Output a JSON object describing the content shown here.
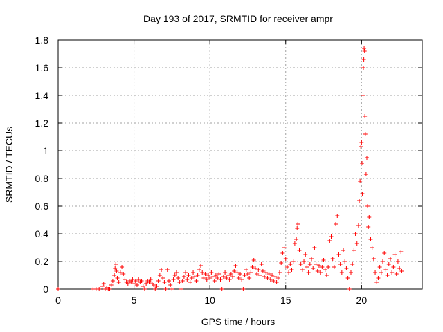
{
  "chart_data": {
    "type": "scatter",
    "title": "Day 193 of 2017, SRMTID for receiver ampr",
    "xlabel": "GPS time / hours",
    "ylabel": "SRMTID / TECUs",
    "xlim": [
      0,
      24
    ],
    "ylim": [
      0,
      1.8
    ],
    "xticks": [
      0,
      5,
      10,
      15,
      20
    ],
    "yticks": [
      0,
      0.2,
      0.4,
      0.6,
      0.8,
      1,
      1.2,
      1.4,
      1.6,
      1.8
    ],
    "xtick_labels": [
      "0",
      "5",
      "10",
      "15",
      "20"
    ],
    "ytick_labels": [
      "0",
      "0.2",
      "0.4",
      "0.6",
      "0.8",
      "1",
      "1.2",
      "1.4",
      "1.6",
      "1.8"
    ],
    "grid": true,
    "marker": "+",
    "color": "#ff0000",
    "series": [
      {
        "name": "SRMTID",
        "points": [
          [
            0.0,
            0.0
          ],
          [
            2.3,
            0.0
          ],
          [
            2.5,
            0.0
          ],
          [
            2.7,
            0.0
          ],
          [
            2.9,
            0.02
          ],
          [
            3.0,
            0.04
          ],
          [
            3.1,
            0.0
          ],
          [
            3.2,
            0.01
          ],
          [
            3.3,
            0.0
          ],
          [
            3.4,
            0.0
          ],
          [
            3.5,
            0.03
          ],
          [
            3.6,
            0.06
          ],
          [
            3.7,
            0.1
          ],
          [
            3.75,
            0.15
          ],
          [
            3.8,
            0.18
          ],
          [
            3.85,
            0.13
          ],
          [
            3.9,
            0.08
          ],
          [
            4.0,
            0.05
          ],
          [
            4.1,
            0.12
          ],
          [
            4.2,
            0.16
          ],
          [
            4.3,
            0.11
          ],
          [
            4.4,
            0.07
          ],
          [
            4.5,
            0.05
          ],
          [
            4.6,
            0.04
          ],
          [
            4.7,
            0.06
          ],
          [
            4.8,
            0.05
          ],
          [
            4.9,
            0.07
          ],
          [
            5.0,
            0.04
          ],
          [
            5.1,
            0.06
          ],
          [
            5.2,
            0.03
          ],
          [
            5.3,
            0.07
          ],
          [
            5.4,
            0.05
          ],
          [
            5.5,
            0.06
          ],
          [
            5.6,
            0.02
          ],
          [
            5.7,
            0.0
          ],
          [
            5.8,
            0.04
          ],
          [
            5.9,
            0.06
          ],
          [
            6.0,
            0.05
          ],
          [
            6.1,
            0.07
          ],
          [
            6.2,
            0.04
          ],
          [
            6.3,
            0.03
          ],
          [
            6.4,
            0.0
          ],
          [
            6.5,
            0.02
          ],
          [
            6.6,
            0.06
          ],
          [
            6.7,
            0.1
          ],
          [
            6.8,
            0.14
          ],
          [
            6.9,
            0.08
          ],
          [
            7.0,
            0.05
          ],
          [
            7.1,
            0.0
          ],
          [
            7.2,
            0.14
          ],
          [
            7.3,
            0.06
          ],
          [
            7.4,
            0.03
          ],
          [
            7.5,
            0.0
          ],
          [
            7.6,
            0.07
          ],
          [
            7.7,
            0.1
          ],
          [
            7.8,
            0.12
          ],
          [
            7.9,
            0.08
          ],
          [
            8.0,
            0.05
          ],
          [
            8.1,
            0.0
          ],
          [
            8.2,
            0.06
          ],
          [
            8.3,
            0.09
          ],
          [
            8.4,
            0.12
          ],
          [
            8.5,
            0.07
          ],
          [
            8.6,
            0.1
          ],
          [
            8.7,
            0.05
          ],
          [
            8.8,
            0.08
          ],
          [
            8.9,
            0.12
          ],
          [
            9.0,
            0.09
          ],
          [
            9.1,
            0.06
          ],
          [
            9.2,
            0.1
          ],
          [
            9.3,
            0.14
          ],
          [
            9.4,
            0.17
          ],
          [
            9.5,
            0.12
          ],
          [
            9.6,
            0.08
          ],
          [
            9.7,
            0.11
          ],
          [
            9.8,
            0.07
          ],
          [
            9.9,
            0.1
          ],
          [
            10.0,
            0.08
          ],
          [
            10.1,
            0.12
          ],
          [
            10.2,
            0.09
          ],
          [
            10.3,
            0.06
          ],
          [
            10.4,
            0.1
          ],
          [
            10.5,
            0.08
          ],
          [
            10.6,
            0.11
          ],
          [
            10.7,
            0.07
          ],
          [
            10.8,
            0.0
          ],
          [
            10.9,
            0.09
          ],
          [
            11.0,
            0.12
          ],
          [
            11.1,
            0.08
          ],
          [
            11.2,
            0.1
          ],
          [
            11.3,
            0.07
          ],
          [
            11.4,
            0.11
          ],
          [
            11.5,
            0.09
          ],
          [
            11.6,
            0.13
          ],
          [
            11.7,
            0.17
          ],
          [
            11.8,
            0.12
          ],
          [
            11.9,
            0.08
          ],
          [
            12.0,
            0.11
          ],
          [
            12.1,
            0.07
          ],
          [
            12.2,
            0.0
          ],
          [
            12.3,
            0.1
          ],
          [
            12.4,
            0.14
          ],
          [
            12.5,
            0.11
          ],
          [
            12.6,
            0.08
          ],
          [
            12.7,
            0.12
          ],
          [
            12.8,
            0.16
          ],
          [
            12.9,
            0.21
          ],
          [
            13.0,
            0.15
          ],
          [
            13.1,
            0.11
          ],
          [
            13.2,
            0.14
          ],
          [
            13.3,
            0.1
          ],
          [
            13.4,
            0.18
          ],
          [
            13.5,
            0.13
          ],
          [
            13.6,
            0.09
          ],
          [
            13.7,
            0.12
          ],
          [
            13.8,
            0.08
          ],
          [
            13.9,
            0.11
          ],
          [
            14.0,
            0.07
          ],
          [
            14.1,
            0.1
          ],
          [
            14.2,
            0.06
          ],
          [
            14.3,
            0.09
          ],
          [
            14.4,
            0.05
          ],
          [
            14.5,
            0.08
          ],
          [
            14.6,
            0.12
          ],
          [
            14.7,
            0.19
          ],
          [
            14.8,
            0.26
          ],
          [
            14.9,
            0.3
          ],
          [
            15.0,
            0.22
          ],
          [
            15.1,
            0.16
          ],
          [
            15.2,
            0.12
          ],
          [
            15.3,
            0.18
          ],
          [
            15.4,
            0.14
          ],
          [
            15.5,
            0.2
          ],
          [
            15.6,
            0.33
          ],
          [
            15.7,
            0.36
          ],
          [
            15.75,
            0.44
          ],
          [
            15.8,
            0.47
          ],
          [
            15.9,
            0.28
          ],
          [
            16.0,
            0.18
          ],
          [
            16.1,
            0.14
          ],
          [
            16.2,
            0.2
          ],
          [
            16.3,
            0.25
          ],
          [
            16.4,
            0.16
          ],
          [
            16.5,
            0.12
          ],
          [
            16.6,
            0.18
          ],
          [
            16.7,
            0.22
          ],
          [
            16.8,
            0.15
          ],
          [
            16.9,
            0.3
          ],
          [
            17.0,
            0.18
          ],
          [
            17.1,
            0.13
          ],
          [
            17.2,
            0.17
          ],
          [
            17.3,
            0.12
          ],
          [
            17.4,
            0.16
          ],
          [
            17.5,
            0.21
          ],
          [
            17.6,
            0.14
          ],
          [
            17.7,
            0.1
          ],
          [
            17.8,
            0.16
          ],
          [
            17.9,
            0.35
          ],
          [
            18.0,
            0.38
          ],
          [
            18.1,
            0.22
          ],
          [
            18.2,
            0.16
          ],
          [
            18.3,
            0.47
          ],
          [
            18.4,
            0.53
          ],
          [
            18.5,
            0.25
          ],
          [
            18.6,
            0.18
          ],
          [
            18.7,
            0.12
          ],
          [
            18.8,
            0.28
          ],
          [
            18.9,
            0.2
          ],
          [
            19.0,
            0.15
          ],
          [
            19.1,
            0.08
          ],
          [
            19.2,
            0.0
          ],
          [
            19.3,
            0.12
          ],
          [
            19.4,
            0.18
          ],
          [
            19.5,
            0.28
          ],
          [
            19.6,
            0.4
          ],
          [
            19.7,
            0.33
          ],
          [
            19.8,
            0.46
          ],
          [
            19.85,
            0.64
          ],
          [
            19.9,
            0.78
          ],
          [
            19.95,
            1.03
          ],
          [
            20.0,
            1.06
          ],
          [
            20.03,
            0.91
          ],
          [
            20.05,
            0.69
          ],
          [
            20.1,
            1.4
          ],
          [
            20.12,
            1.6
          ],
          [
            20.15,
            1.66
          ],
          [
            20.17,
            1.74
          ],
          [
            20.2,
            1.72
          ],
          [
            20.22,
            1.25
          ],
          [
            20.25,
            1.12
          ],
          [
            20.3,
            0.83
          ],
          [
            20.35,
            0.95
          ],
          [
            20.4,
            0.6
          ],
          [
            20.45,
            0.45
          ],
          [
            20.5,
            0.52
          ],
          [
            20.6,
            0.36
          ],
          [
            20.7,
            0.3
          ],
          [
            20.8,
            0.22
          ],
          [
            20.9,
            0.12
          ],
          [
            21.0,
            0.05
          ],
          [
            21.1,
            0.08
          ],
          [
            21.2,
            0.16
          ],
          [
            21.3,
            0.12
          ],
          [
            21.4,
            0.2
          ],
          [
            21.5,
            0.26
          ],
          [
            21.6,
            0.14
          ],
          [
            21.7,
            0.1
          ],
          [
            21.8,
            0.18
          ],
          [
            21.9,
            0.22
          ],
          [
            22.0,
            0.12
          ],
          [
            22.1,
            0.16
          ],
          [
            22.2,
            0.25
          ],
          [
            22.3,
            0.11
          ],
          [
            22.4,
            0.2
          ],
          [
            22.5,
            0.15
          ],
          [
            22.6,
            0.27
          ],
          [
            22.65,
            0.13
          ]
        ]
      }
    ]
  }
}
